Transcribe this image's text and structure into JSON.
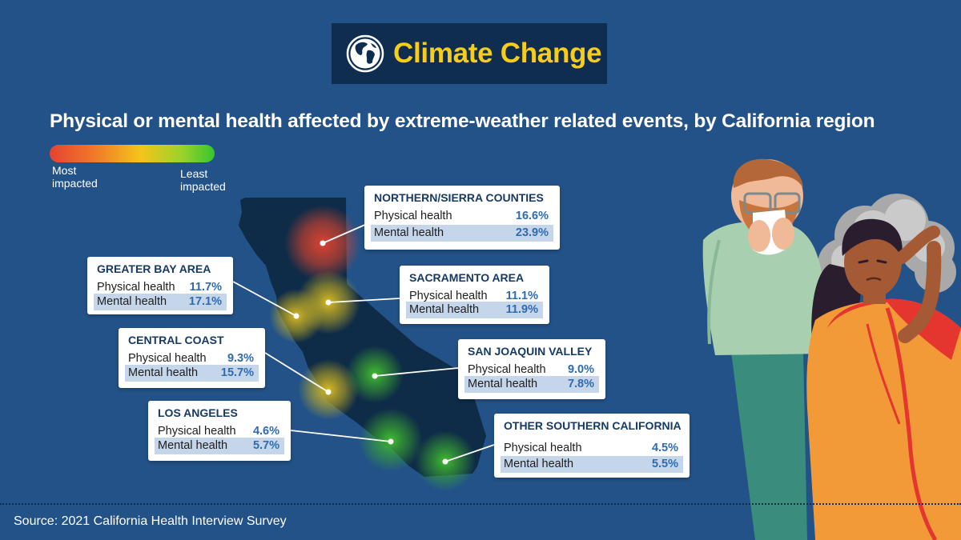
{
  "header": {
    "title": "Climate Change",
    "icon": "globe-icon"
  },
  "subtitle": "Physical or mental health affected by extreme-weather related events, by California region",
  "legend": {
    "most": "Most impacted",
    "least": "Least impacted",
    "colors": [
      "#e5432f",
      "#f5c41a",
      "#37c52f"
    ]
  },
  "regions": [
    {
      "name": "NORTHERN/SIERRA COUNTIES",
      "physical_label": "Physical health",
      "physical": "16.6%",
      "mental_label": "Mental health",
      "mental": "23.9%",
      "impact": "high"
    },
    {
      "name": "GREATER BAY AREA",
      "physical_label": "Physical health",
      "physical": "11.7%",
      "mental_label": "Mental health",
      "mental": "17.1%",
      "impact": "medium"
    },
    {
      "name": "SACRAMENTO AREA",
      "physical_label": "Physical health",
      "physical": "11.1%",
      "mental_label": "Mental health",
      "mental": "11.9%",
      "impact": "medium"
    },
    {
      "name": "CENTRAL COAST",
      "physical_label": "Physical health",
      "physical": "9.3%",
      "mental_label": "Mental health",
      "mental": "15.7%",
      "impact": "medium"
    },
    {
      "name": "SAN JOAQUIN VALLEY",
      "physical_label": "Physical health",
      "physical": "9.0%",
      "mental_label": "Mental health",
      "mental": "7.8%",
      "impact": "low"
    },
    {
      "name": "LOS ANGELES",
      "physical_label": "Physical health",
      "physical": "4.6%",
      "mental_label": "Mental health",
      "mental": "5.7%",
      "impact": "low"
    },
    {
      "name": "OTHER SOUTHERN CALIFORNIA",
      "physical_label": "Physical health",
      "physical": "4.5%",
      "mental_label": "Mental health",
      "mental": "5.5%",
      "impact": "low"
    }
  ],
  "source": "Source: 2021 California Health Interview Survey",
  "colors": {
    "background": "#225287",
    "title_box": "#0f2d4f",
    "title_text": "#f7cd19",
    "state": "#0e2b47",
    "value_text": "#2e6bb0"
  }
}
